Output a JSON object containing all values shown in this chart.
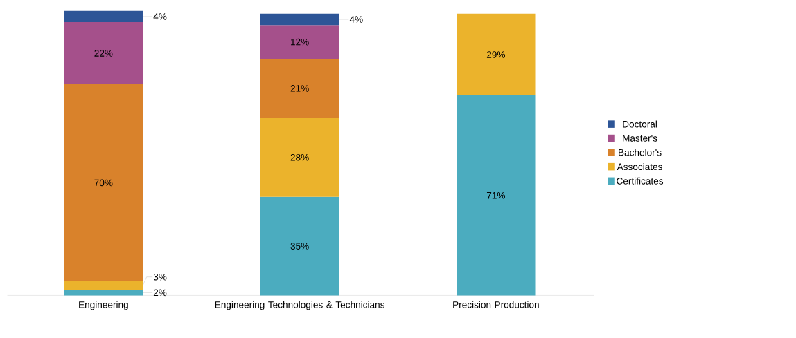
{
  "chart_data": {
    "type": "bar",
    "stacked": true,
    "legend": "right",
    "data_labels": true,
    "categories": [
      "Engineering",
      "Engineering Technologies & Technicians",
      "Precision Production"
    ],
    "series": [
      {
        "name": "Certificates",
        "color": "#4bacbf",
        "values": [
          2,
          35,
          71
        ],
        "value_labels": [
          "2%",
          "35%",
          "71%"
        ]
      },
      {
        "name": "Associates",
        "color": "#ebb32c",
        "values": [
          3,
          28,
          29
        ],
        "value_labels": [
          "3%",
          "28%",
          "29%"
        ]
      },
      {
        "name": "Bachelor's",
        "color": "#d9822b",
        "values": [
          70,
          21,
          null
        ],
        "value_labels": [
          "70%",
          "21%",
          null
        ]
      },
      {
        "name": "Master's",
        "color": "#a5508b",
        "values": [
          22,
          12,
          null
        ],
        "value_labels": [
          "22%",
          "12%",
          null
        ]
      },
      {
        "name": "Doctoral",
        "color": "#2d5597",
        "values": [
          4,
          4,
          null
        ],
        "value_labels": [
          "4%",
          "4%",
          null
        ]
      }
    ]
  }
}
